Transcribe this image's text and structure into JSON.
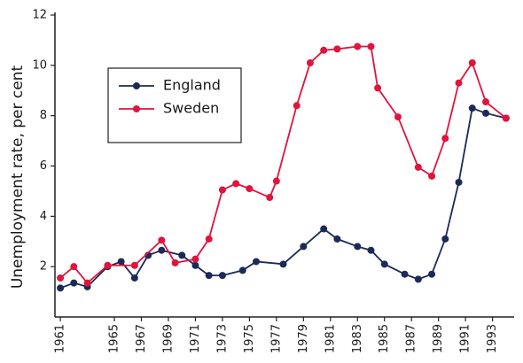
{
  "chart_data": {
    "type": "line",
    "y_label": "Unemployment rate, per cent",
    "xlim": [
      1960.6,
      1994.6
    ],
    "xticks": [
      1961,
      1965,
      1967,
      1969,
      1971,
      1973,
      1975,
      1977,
      1979,
      1981,
      1983,
      1985,
      1987,
      1989,
      1991,
      1993
    ],
    "ylim": [
      0,
      12
    ],
    "yticks": [
      2,
      4,
      6,
      8,
      10,
      12
    ],
    "legend": "upper-left",
    "series": [
      {
        "name": "England",
        "color": "#1b2a57",
        "x": [
          1961,
          1962,
          1963,
          1964.5,
          1965.5,
          1966.5,
          1967.5,
          1968.5,
          1970,
          1971,
          1972,
          1973,
          1974.5,
          1975.5,
          1977.5,
          1979,
          1980.5,
          1981.5,
          1983,
          1984,
          1985,
          1986.5,
          1987.5,
          1988.5,
          1989.5,
          1990.5,
          1991.5,
          1992.5,
          1994
        ],
        "values": [
          1.15,
          1.35,
          1.2,
          2.0,
          2.2,
          1.55,
          2.45,
          2.65,
          2.45,
          2.05,
          1.65,
          1.65,
          1.85,
          2.2,
          2.1,
          2.8,
          3.5,
          3.1,
          2.8,
          2.65,
          2.1,
          1.7,
          1.5,
          1.7,
          3.1,
          5.35,
          8.3,
          8.1,
          7.9
        ]
      },
      {
        "name": "Sweden",
        "color": "#e0143c",
        "x": [
          1961,
          1962,
          1963,
          1964.5,
          1966.5,
          1968.5,
          1969.5,
          1971,
          1972,
          1973,
          1974,
          1975,
          1976.5,
          1977,
          1978.5,
          1979.5,
          1980.5,
          1981.5,
          1983,
          1984,
          1984.5,
          1986,
          1987.5,
          1988.5,
          1989.5,
          1990.5,
          1991.5,
          1992.5,
          1994
        ],
        "values": [
          1.55,
          2.0,
          1.35,
          2.05,
          2.05,
          3.05,
          2.15,
          2.3,
          3.1,
          5.05,
          5.3,
          5.1,
          4.75,
          5.4,
          8.4,
          10.1,
          10.6,
          10.65,
          10.75,
          10.75,
          9.1,
          7.95,
          5.95,
          5.6,
          7.1,
          9.3,
          10.1,
          8.55,
          7.9
        ]
      }
    ]
  }
}
